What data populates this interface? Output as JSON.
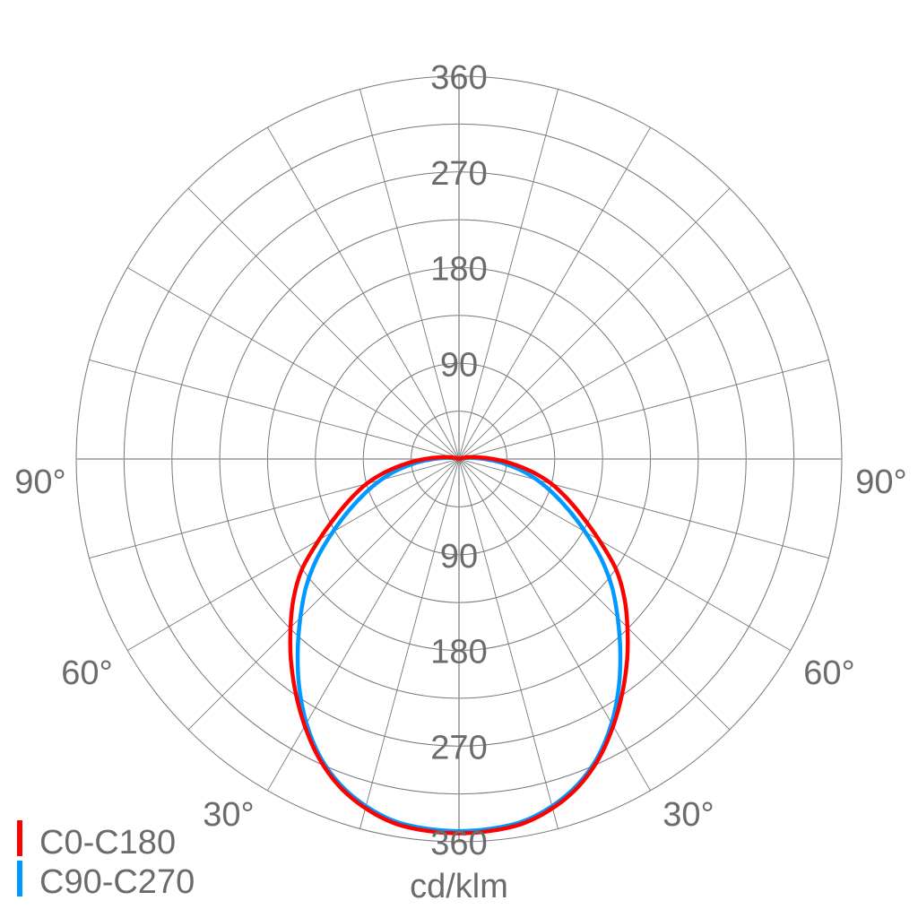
{
  "chart_data": {
    "type": "polar",
    "unit_label": "cd/klm",
    "radial_range": [
      0,
      360
    ],
    "radial_tick_labels": [
      "90",
      "180",
      "270",
      "360"
    ],
    "radial_grid_step": 45,
    "angular_grid_step_deg": 15,
    "angle_labels": [
      "90°",
      "60°",
      "30°"
    ],
    "grid": true,
    "legend_placement": "bottom-left",
    "angles_deg": [
      0,
      5,
      10,
      15,
      20,
      25,
      30,
      35,
      40,
      45,
      50,
      55,
      60,
      65,
      70,
      75,
      80,
      85,
      90,
      95,
      100,
      105,
      110,
      120
    ],
    "series": [
      {
        "name": "C0-C180",
        "color": "#ff0000",
        "values": [
          352,
          351,
          348,
          340,
          328,
          311,
          290,
          268,
          246,
          224,
          203,
          180,
          152,
          128,
          108,
          90,
          70,
          50,
          32,
          18,
          10,
          5,
          2,
          0
        ]
      },
      {
        "name": "C90-C270",
        "color": "#0099ff",
        "values": [
          350,
          349,
          346,
          338,
          326,
          309,
          287,
          262,
          236,
          211,
          188,
          163,
          137,
          114,
          94,
          76,
          58,
          40,
          24,
          12,
          6,
          3,
          1,
          0
        ]
      }
    ]
  }
}
